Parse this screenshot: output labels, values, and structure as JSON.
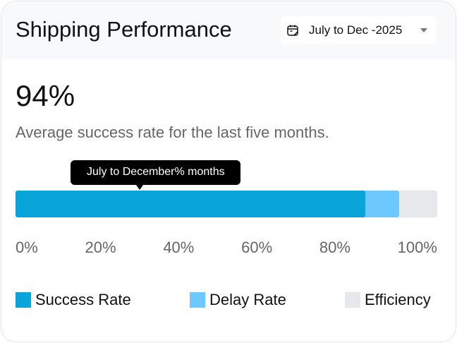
{
  "header": {
    "title": "Shipping Performance",
    "date_range": "July to Dec -2025",
    "calendar_icon": "calendar-icon"
  },
  "summary": {
    "value": "94%",
    "description": "Average success rate for the last five months."
  },
  "tooltip": "July to December% months",
  "progress": {
    "success_rate_percent": 83,
    "delay_rate_percent": 8,
    "colors": {
      "success": "#08a4da",
      "delay": "#6cc8ff",
      "efficiency": "#e6e8eb"
    }
  },
  "axis": [
    "0%",
    "20%",
    "40%",
    "60%",
    "80%",
    "100%"
  ],
  "legend": [
    {
      "label": "Success Rate"
    },
    {
      "label": "Delay Rate"
    },
    {
      "label": "Efficiency"
    }
  ]
}
